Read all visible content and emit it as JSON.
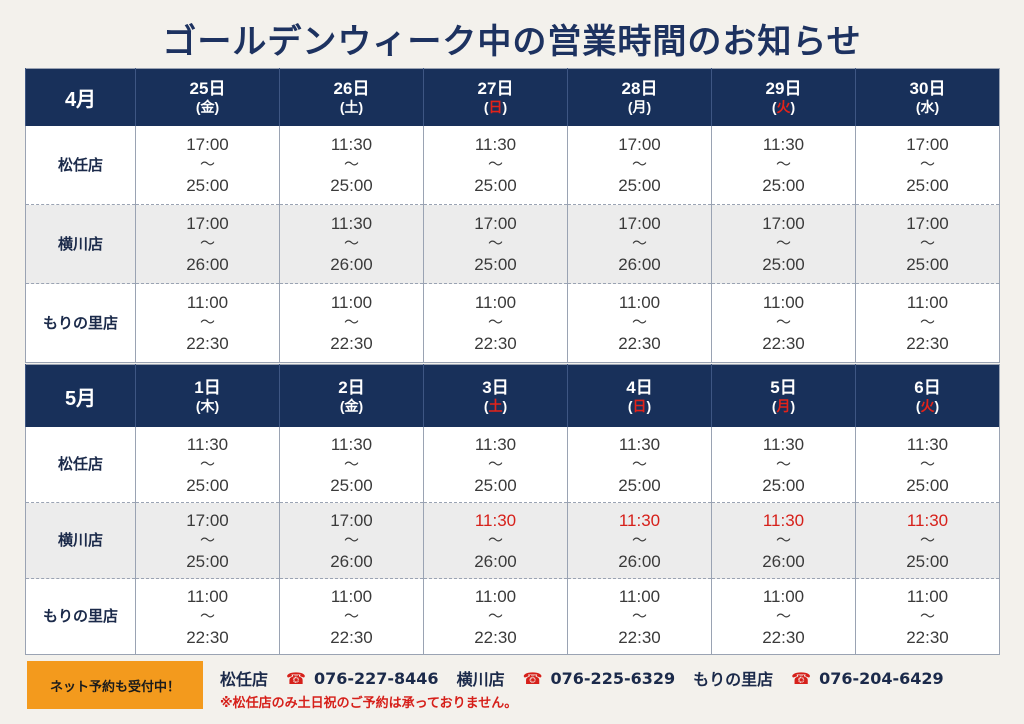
{
  "title": "ゴールデンウィーク中の営業時間のお知らせ",
  "tilde": "～",
  "april": {
    "month_label": "4月",
    "days": [
      {
        "date": "25日",
        "dow_open": "(",
        "dow": "金",
        "dow_close": ")",
        "holiday": false
      },
      {
        "date": "26日",
        "dow_open": "(",
        "dow": "土",
        "dow_close": ")",
        "holiday": false
      },
      {
        "date": "27日",
        "dow_open": "(",
        "dow": "日",
        "dow_close": ")",
        "holiday": true
      },
      {
        "date": "28日",
        "dow_open": "(",
        "dow": "月",
        "dow_close": ")",
        "holiday": false
      },
      {
        "date": "29日",
        "dow_open": "(",
        "dow": "火",
        "dow_close": ")",
        "holiday": true
      },
      {
        "date": "30日",
        "dow_open": "(",
        "dow": "水",
        "dow_close": ")",
        "holiday": false
      }
    ],
    "stores": [
      {
        "name": "松任店",
        "hours": [
          {
            "open": "17:00",
            "close": "25:00"
          },
          {
            "open": "11:30",
            "close": "25:00"
          },
          {
            "open": "11:30",
            "close": "25:00"
          },
          {
            "open": "17:00",
            "close": "25:00"
          },
          {
            "open": "11:30",
            "close": "25:00"
          },
          {
            "open": "17:00",
            "close": "25:00"
          }
        ]
      },
      {
        "name": "横川店",
        "hours": [
          {
            "open": "17:00",
            "close": "26:00"
          },
          {
            "open": "11:30",
            "close": "26:00"
          },
          {
            "open": "17:00",
            "close": "25:00"
          },
          {
            "open": "17:00",
            "close": "26:00"
          },
          {
            "open": "17:00",
            "close": "25:00"
          },
          {
            "open": "17:00",
            "close": "25:00"
          }
        ]
      },
      {
        "name": "もりの里店",
        "hours": [
          {
            "open": "11:00",
            "close": "22:30"
          },
          {
            "open": "11:00",
            "close": "22:30"
          },
          {
            "open": "11:00",
            "close": "22:30"
          },
          {
            "open": "11:00",
            "close": "22:30"
          },
          {
            "open": "11:00",
            "close": "22:30"
          },
          {
            "open": "11:00",
            "close": "22:30"
          }
        ]
      }
    ]
  },
  "may": {
    "month_label": "5月",
    "days": [
      {
        "date": "1日",
        "dow_open": "(",
        "dow": "木",
        "dow_close": ")",
        "holiday": false
      },
      {
        "date": "2日",
        "dow_open": "(",
        "dow": "金",
        "dow_close": ")",
        "holiday": false
      },
      {
        "date": "3日",
        "dow_open": "(",
        "dow": "土",
        "dow_close": ")",
        "holiday": true
      },
      {
        "date": "4日",
        "dow_open": "(",
        "dow": "日",
        "dow_close": ")",
        "holiday": true
      },
      {
        "date": "5日",
        "dow_open": "(",
        "dow": "月",
        "dow_close": ")",
        "holiday": true
      },
      {
        "date": "6日",
        "dow_open": "(",
        "dow": "火",
        "dow_close": ")",
        "holiday": true
      }
    ],
    "stores": [
      {
        "name": "松任店",
        "hours": [
          {
            "open": "11:30",
            "close": "25:00"
          },
          {
            "open": "11:30",
            "close": "25:00"
          },
          {
            "open": "11:30",
            "close": "25:00"
          },
          {
            "open": "11:30",
            "close": "25:00"
          },
          {
            "open": "11:30",
            "close": "25:00"
          },
          {
            "open": "11:30",
            "close": "25:00"
          }
        ]
      },
      {
        "name": "横川店",
        "hours": [
          {
            "open": "17:00",
            "close": "25:00"
          },
          {
            "open": "17:00",
            "close": "26:00"
          },
          {
            "open": "11:30",
            "close": "26:00",
            "highlight": true
          },
          {
            "open": "11:30",
            "close": "26:00",
            "highlight": true
          },
          {
            "open": "11:30",
            "close": "26:00",
            "highlight": true
          },
          {
            "open": "11:30",
            "close": "25:00",
            "highlight": true
          }
        ]
      },
      {
        "name": "もりの里店",
        "hours": [
          {
            "open": "11:00",
            "close": "22:30"
          },
          {
            "open": "11:00",
            "close": "22:30"
          },
          {
            "open": "11:00",
            "close": "22:30"
          },
          {
            "open": "11:00",
            "close": "22:30"
          },
          {
            "open": "11:00",
            "close": "22:30"
          },
          {
            "open": "11:00",
            "close": "22:30"
          }
        ]
      }
    ]
  },
  "footer": {
    "badge": "ネット予約も受付中！",
    "contacts": [
      {
        "store": "松任店",
        "phone": "076-227-8446",
        "icon": "telephone-icon"
      },
      {
        "store": "横川店",
        "phone": "076-225-6329",
        "icon": "telephone-icon"
      },
      {
        "store": "もりの里店",
        "phone": "076-204-6429",
        "icon": "telephone-icon"
      }
    ],
    "note": "※松任店のみ土日祝のご予約は承っておりません。"
  },
  "colors": {
    "header": "#18305a",
    "holiday": "#e2231a",
    "highlight": "#d6201a",
    "badge": "#f39a1d"
  }
}
